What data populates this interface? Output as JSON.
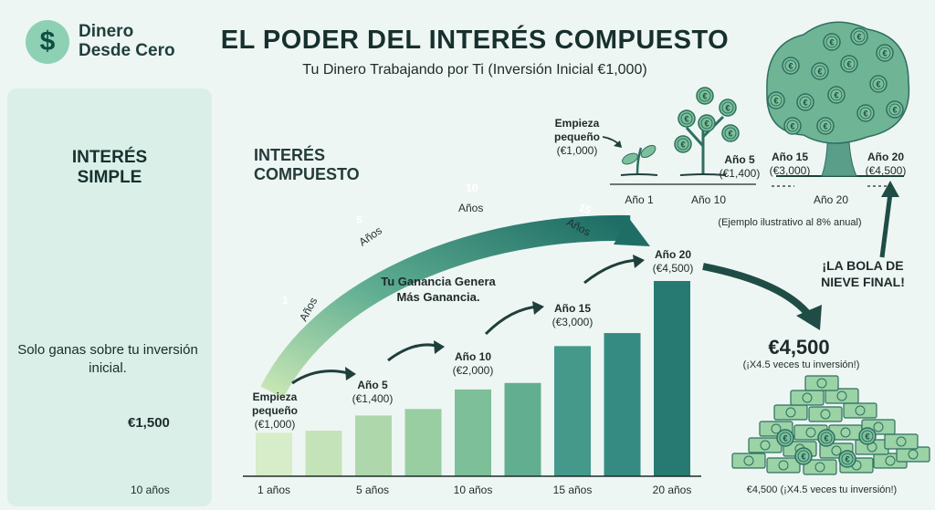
{
  "brand": {
    "logo_symbol": "$",
    "name": "Dinero\nDesde Cero"
  },
  "header": {
    "title": "EL PODER DEL INTERÉS COMPUESTO",
    "subtitle": "Tu Dinero Trabajando por Ti (Inversión Inicial €1,000)"
  },
  "simple": {
    "title": "INTERÉS\nSIMPLE",
    "note": "Solo ganas sobre tu inversión inicial.",
    "final_value": "€1,500",
    "years_label": "10 años"
  },
  "compound": {
    "label": "INTERÉS\nCOMPUESTO",
    "arc_stages": [
      {
        "num": "1",
        "unit": "Años"
      },
      {
        "num": "5",
        "unit": "Años"
      },
      {
        "num": "10",
        "unit": "Años"
      },
      {
        "num": "15",
        "unit": "Años"
      }
    ],
    "gain_text": "Tu Ganancia Genera\nMás Ganancia.",
    "bar_values": [
      1000,
      1050,
      1400,
      1550,
      2000,
      2150,
      3000,
      3300,
      4500
    ],
    "bar_colors": [
      "#d7ecc8",
      "#c5e3b8",
      "#aed8ab",
      "#99ceA2",
      "#7cbf98",
      "#62ae91",
      "#44998a",
      "#358b82",
      "#277a72"
    ],
    "milestones": [
      {
        "year": "Empieza\npequeño",
        "value": "(€1,000)"
      },
      {
        "year": "Año 5",
        "value": "(€1,400)"
      },
      {
        "year": "Año 10",
        "value": "(€2,000)"
      },
      {
        "year": "Año 15",
        "value": "(€3,000)"
      },
      {
        "year": "Año 20",
        "value": "(€4,500)"
      }
    ],
    "x_ticks": [
      "1 años",
      "5 años",
      "10 años",
      "15 años",
      "20 años"
    ]
  },
  "growth": {
    "start": {
      "label": "Empieza\npequeño",
      "value": "(€1,000)"
    },
    "year5": {
      "label": "Año 5",
      "value": "(€1,400)"
    },
    "year15": {
      "label": "Año 15",
      "value": "(€3,000)"
    },
    "year20": {
      "label": "Año 20",
      "value": "(€4,500)"
    },
    "timeline": [
      "Año 1",
      "Año 10",
      "Año 20"
    ],
    "note": "(Ejemplo ilustrativo al 8% anual)"
  },
  "final": {
    "snowball": "¡LA BOLA DE\nNIEVE FINAL!",
    "value": "€4,500",
    "multiplier": "(¡X4.5 veces tu inversión!)",
    "caption": "€4,500 (¡X4.5 veces tu inversión!)"
  },
  "icons": [
    "piggy-bank-icon",
    "coin-icon",
    "plant-icon",
    "tree-icon",
    "money-pile-icon",
    "arrow-icon"
  ],
  "colors": {
    "dark": "#17302d",
    "teal": "#277a72",
    "mint": "#8ed0b3",
    "panel": "#d9efe8",
    "bg": "#eef6f3"
  }
}
